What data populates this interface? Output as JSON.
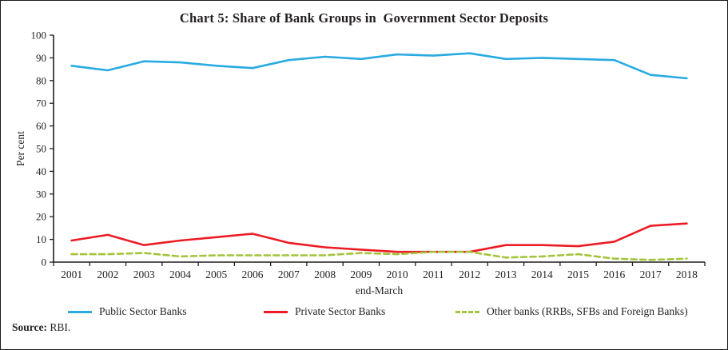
{
  "title": "Chart 5: Share of Bank Groups in  Government Sector Deposits",
  "chart_data": {
    "type": "line",
    "x": [
      "2001",
      "2002",
      "2003",
      "2004",
      "2005",
      "2006",
      "2007",
      "2008",
      "2009",
      "2010",
      "2011",
      "2012",
      "2013",
      "2014",
      "2015",
      "2016",
      "2017",
      "2018"
    ],
    "series": [
      {
        "name": "Public Sector Banks",
        "color": "#29ABE2",
        "style": "solid",
        "values": [
          86.5,
          84.5,
          88.5,
          88,
          86.5,
          85.5,
          89,
          90.5,
          89.5,
          91.5,
          91,
          92,
          89.5,
          90,
          89.5,
          89,
          82.5,
          81
        ]
      },
      {
        "name": "Private Sector Banks",
        "color": "#EC1C24",
        "style": "solid",
        "values": [
          9.5,
          12,
          7.5,
          9.5,
          11,
          12.5,
          8.5,
          6.5,
          5.5,
          4.5,
          4.5,
          4.5,
          7.5,
          7.5,
          7,
          9,
          16,
          17
        ]
      },
      {
        "name": "Other banks (RRBs, SFBs and Foreign Banks)",
        "color": "#A4C43C",
        "style": "dashed",
        "values": [
          3.5,
          3.5,
          4,
          2.5,
          3,
          3,
          3,
          3,
          4,
          3.5,
          4.5,
          4.5,
          2,
          2.5,
          3.5,
          1.5,
          1,
          1.5
        ]
      }
    ],
    "xlabel": "end-March",
    "ylabel": "Per cent",
    "ylim": [
      0,
      100
    ],
    "ytick_step": 10,
    "grid": false,
    "legend_position": "bottom",
    "axis_color": "#231f20"
  },
  "source": {
    "label": "Source:",
    "text": " RBI."
  }
}
